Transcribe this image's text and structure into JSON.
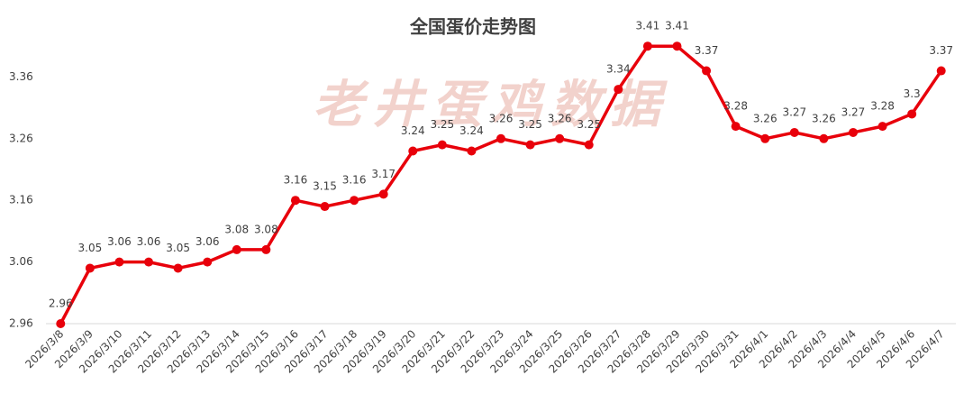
{
  "chart_data": {
    "type": "line",
    "title": "全国蛋价走势图",
    "watermark": "老井蛋鸡数据",
    "categories": [
      "2026/3/8",
      "2026/3/9",
      "2026/3/10",
      "2026/3/11",
      "2026/3/12",
      "2026/3/13",
      "2026/3/14",
      "2026/3/15",
      "2026/3/16",
      "2026/3/17",
      "2026/3/18",
      "2026/3/19",
      "2026/3/20",
      "2026/3/21",
      "2026/3/22",
      "2026/3/23",
      "2026/3/24",
      "2026/3/25",
      "2026/3/26",
      "2026/3/27",
      "2026/3/28",
      "2026/3/29",
      "2026/3/30",
      "2026/3/31",
      "2026/4/1",
      "2026/4/2",
      "2026/4/3",
      "2026/4/4",
      "2026/4/5",
      "2026/4/6",
      "2026/4/7"
    ],
    "values": [
      2.96,
      3.05,
      3.06,
      3.06,
      3.05,
      3.06,
      3.08,
      3.08,
      3.16,
      3.15,
      3.16,
      3.17,
      3.24,
      3.25,
      3.24,
      3.26,
      3.25,
      3.26,
      3.25,
      3.34,
      3.41,
      3.41,
      3.37,
      3.28,
      3.26,
      3.27,
      3.26,
      3.27,
      3.28,
      3.3,
      3.37
    ],
    "color": "#e8000b",
    "ylim": [
      2.96,
      3.46
    ],
    "yticks": [
      2.96,
      3.06,
      3.16,
      3.26,
      3.36
    ]
  }
}
